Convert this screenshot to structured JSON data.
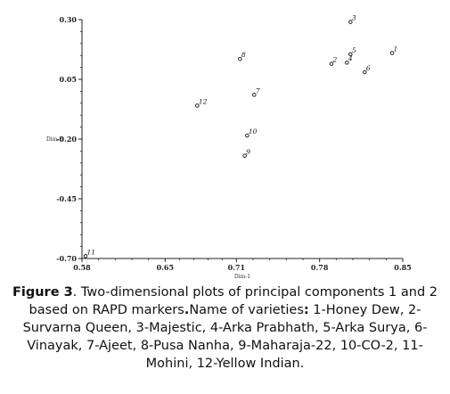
{
  "chart_data": {
    "type": "scatter",
    "xlabel": "Dim-1",
    "ylabel": "Dim-2",
    "xlim": [
      0.58,
      0.85
    ],
    "ylim": [
      -0.7,
      0.3
    ],
    "xticks": [
      "0.58",
      "0.65",
      "0.71",
      "0.78",
      "0.85"
    ],
    "yticks": [
      "0.30",
      "0.05",
      "-0.20",
      "-0.45",
      "-0.70"
    ],
    "grid": false,
    "points": [
      {
        "label": "1",
        "x": 0.841,
        "y": 0.16
      },
      {
        "label": "2",
        "x": 0.79,
        "y": 0.115
      },
      {
        "label": "3",
        "x": 0.806,
        "y": 0.29
      },
      {
        "label": "4",
        "x": 0.803,
        "y": 0.12
      },
      {
        "label": "5",
        "x": 0.806,
        "y": 0.155
      },
      {
        "label": "6",
        "x": 0.818,
        "y": 0.08
      },
      {
        "label": "7",
        "x": 0.725,
        "y": -0.015
      },
      {
        "label": "8",
        "x": 0.713,
        "y": 0.135
      },
      {
        "label": "9",
        "x": 0.717,
        "y": -0.27
      },
      {
        "label": "10",
        "x": 0.719,
        "y": -0.185
      },
      {
        "label": "11",
        "x": 0.583,
        "y": -0.69
      },
      {
        "label": "12",
        "x": 0.677,
        "y": -0.06
      }
    ]
  },
  "caption": {
    "label": "Figure 3",
    "text": ". Two-dimensional plots of principal components 1 and 2 based on RAPD markers",
    "bold_dot": ".",
    "prefix": "Name of varieties",
    "colon": ":",
    "list": " 1-Honey Dew, 2-Survarna Queen, 3-Majestic, 4-Arka Prabhath, 5-Arka Surya, 6-Vinayak, 7-Ajeet, 8-Pusa Nanha, 9-Maharaja-22, 10-CO-2, 11-Mohini, 12-Yellow Indian."
  }
}
